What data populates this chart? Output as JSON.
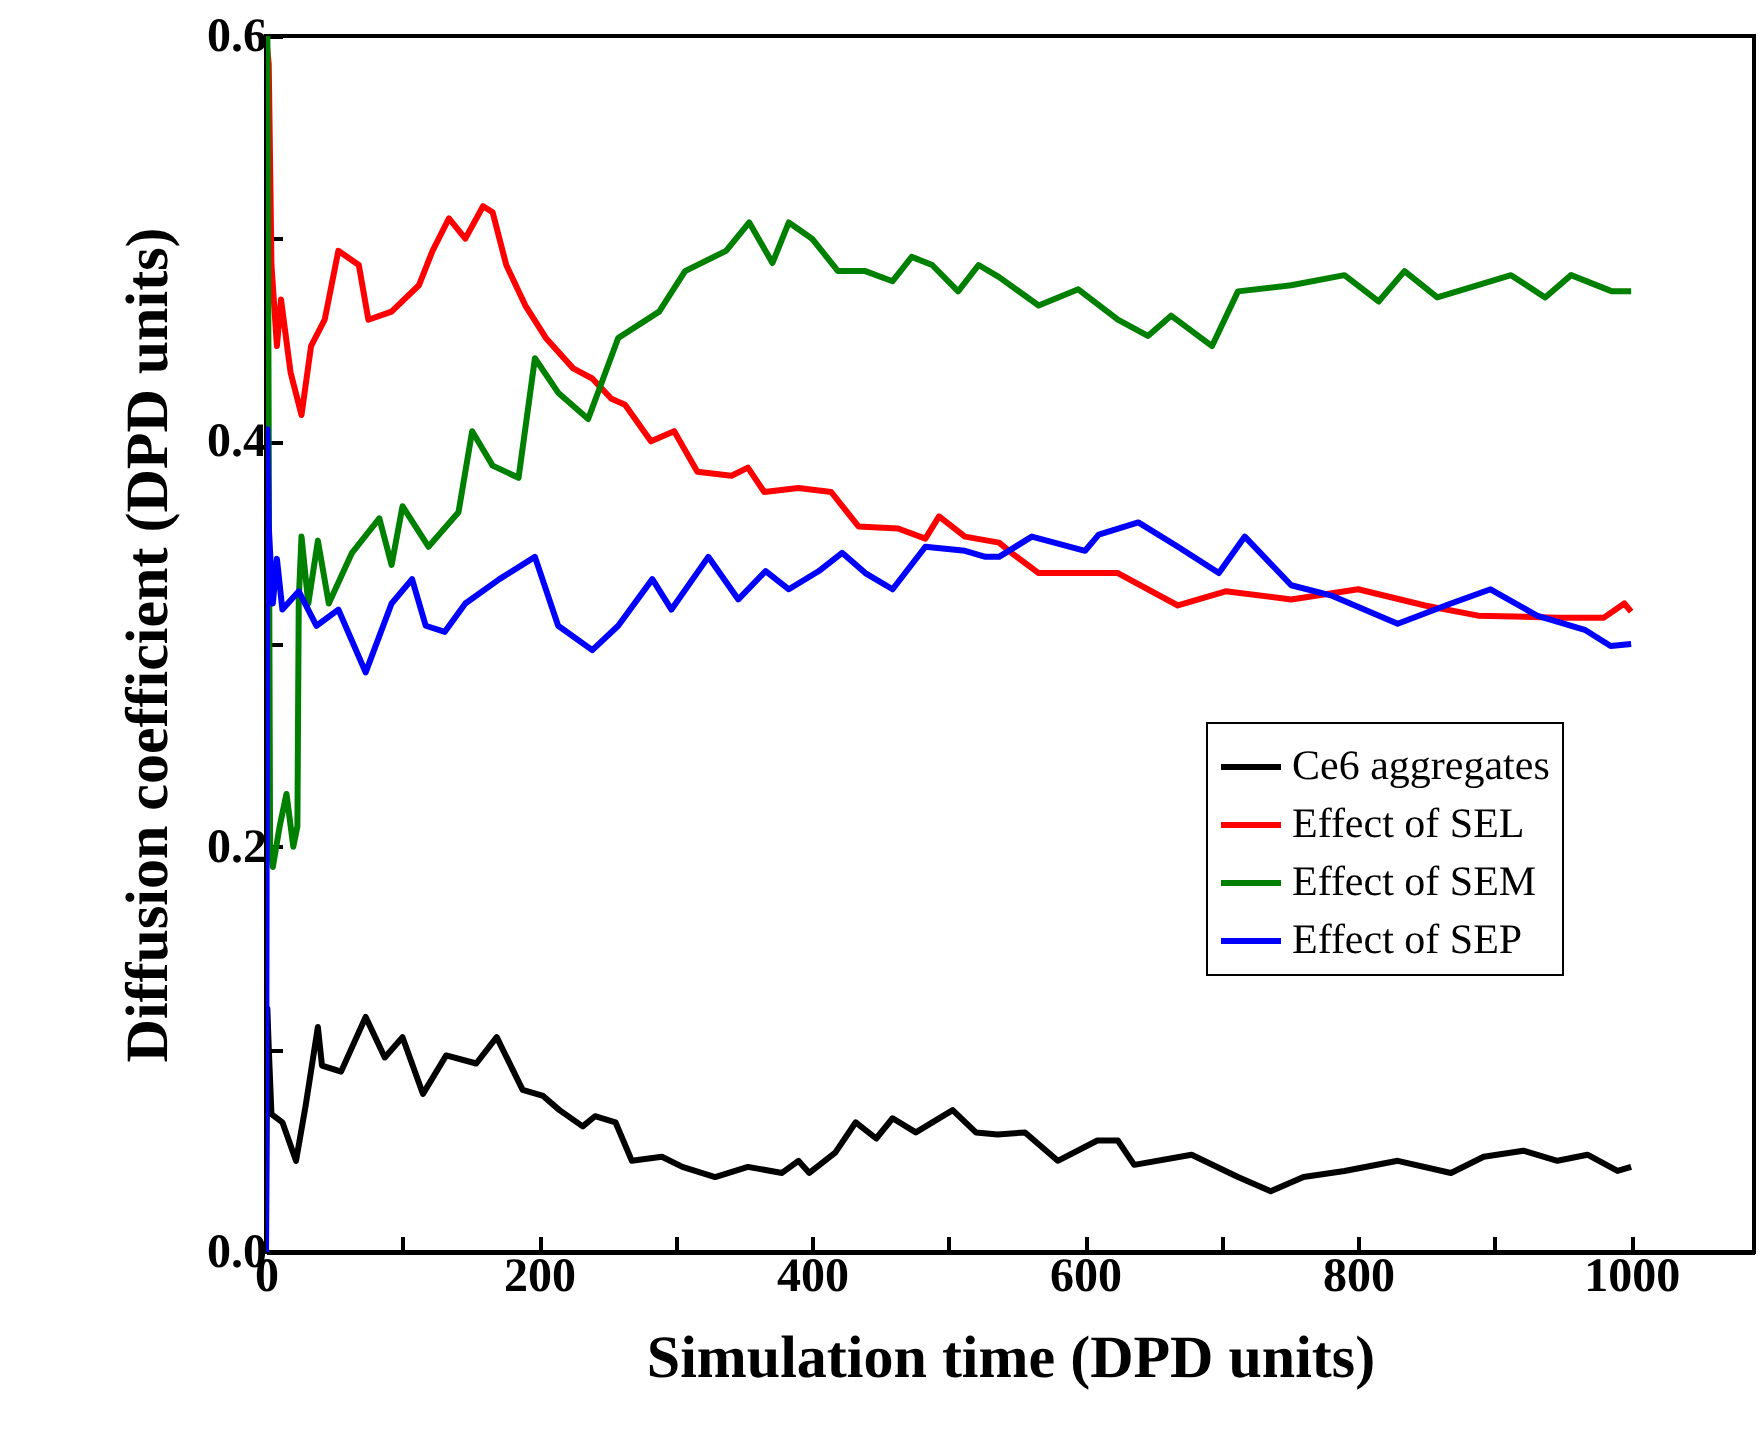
{
  "chart_data": {
    "type": "line",
    "xlabel": "Simulation time (DPD units)",
    "ylabel": "Diffusion coefficient (DPD units)",
    "xlim": [
      0,
      1090
    ],
    "xticks": [
      0,
      {
        "value": 100,
        "label": null
      },
      200,
      {
        "value": 300,
        "label": null
      },
      400,
      {
        "value": 500,
        "label": null
      },
      600,
      {
        "value": 700,
        "label": null
      },
      800,
      {
        "value": 900,
        "label": null
      },
      1000
    ],
    "ylim": [
      0,
      0.6
    ],
    "yticks": [
      {
        "value": 0,
        "label": "0.0"
      },
      {
        "value": 0.1,
        "label": null
      },
      0.2,
      {
        "value": 0.3,
        "label": null
      },
      0.4,
      {
        "value": 0.5,
        "label": null
      },
      0.6
    ],
    "grid": false,
    "legend": "right",
    "line_style": "solid",
    "marker": "none",
    "series": [
      {
        "name": "Ce6 aggregates",
        "color": "#000000",
        "x": [
          0,
          1,
          2,
          4,
          12,
          22,
          29,
          38,
          41,
          55,
          73,
          87,
          100,
          115,
          132,
          154,
          169,
          188,
          203,
          215,
          232,
          241,
          256,
          268,
          290,
          305,
          329,
          353,
          378,
          390,
          398,
          417,
          432,
          447,
          459,
          476,
          503,
          520,
          536,
          556,
          580,
          609,
          624,
          636,
          678,
          712,
          736,
          760,
          790,
          829,
          868,
          892,
          921,
          946,
          968,
          990,
          1000
        ],
        "values": [
          0,
          0.12,
          0.101,
          0.068,
          0.064,
          0.045,
          0.072,
          0.111,
          0.092,
          0.089,
          0.116,
          0.096,
          0.106,
          0.078,
          0.097,
          0.093,
          0.106,
          0.08,
          0.077,
          0.07,
          0.062,
          0.067,
          0.064,
          0.045,
          0.047,
          0.042,
          0.037,
          0.042,
          0.039,
          0.045,
          0.039,
          0.049,
          0.064,
          0.056,
          0.066,
          0.059,
          0.07,
          0.059,
          0.058,
          0.059,
          0.045,
          0.055,
          0.055,
          0.043,
          0.048,
          0.037,
          0.03,
          0.037,
          0.04,
          0.045,
          0.039,
          0.047,
          0.05,
          0.045,
          0.048,
          0.04,
          0.042
        ]
      },
      {
        "name": "Effect of SEL",
        "color": "#ff0000",
        "x": [
          0,
          2,
          4,
          8,
          11,
          18,
          26,
          33,
          43,
          53,
          68,
          75,
          92,
          112,
          122,
          134,
          146,
          159,
          166,
          176,
          190,
          205,
          225,
          239,
          253,
          263,
          282,
          299,
          316,
          341,
          353,
          365,
          390,
          414,
          434,
          463,
          483,
          493,
          512,
          537,
          546,
          566,
          605,
          624,
          668,
          703,
          751,
          800,
          849,
          888,
          946,
          980,
          995,
          1000
        ],
        "values": [
          0.6,
          0.586,
          0.487,
          0.447,
          0.47,
          0.434,
          0.413,
          0.447,
          0.46,
          0.494,
          0.487,
          0.46,
          0.464,
          0.477,
          0.494,
          0.51,
          0.5,
          0.516,
          0.513,
          0.487,
          0.467,
          0.451,
          0.436,
          0.431,
          0.421,
          0.418,
          0.4,
          0.405,
          0.385,
          0.383,
          0.387,
          0.375,
          0.377,
          0.375,
          0.358,
          0.357,
          0.352,
          0.363,
          0.353,
          0.35,
          0.345,
          0.335,
          0.335,
          0.335,
          0.319,
          0.326,
          0.322,
          0.327,
          0.319,
          0.314,
          0.313,
          0.313,
          0.32,
          0.316
        ]
      },
      {
        "name": "Effect of SEM",
        "color": "#008000",
        "x": [
          0,
          1,
          3,
          5,
          10,
          15,
          20,
          23,
          24,
          26,
          31,
          38,
          46,
          63,
          83,
          92,
          100,
          119,
          141,
          151,
          166,
          185,
          197,
          214,
          236,
          258,
          288,
          307,
          337,
          354,
          371,
          383,
          400,
          419,
          439,
          459,
          473,
          488,
          507,
          522,
          537,
          566,
          595,
          624,
          646,
          663,
          693,
          712,
          751,
          790,
          815,
          834,
          858,
          912,
          937,
          956,
          986,
          1000
        ],
        "values": [
          0.41,
          0.6,
          0.2,
          0.19,
          0.21,
          0.226,
          0.2,
          0.21,
          0.322,
          0.353,
          0.32,
          0.351,
          0.32,
          0.345,
          0.362,
          0.339,
          0.368,
          0.348,
          0.365,
          0.405,
          0.388,
          0.382,
          0.441,
          0.424,
          0.411,
          0.451,
          0.464,
          0.484,
          0.494,
          0.508,
          0.488,
          0.508,
          0.5,
          0.484,
          0.484,
          0.479,
          0.491,
          0.487,
          0.474,
          0.487,
          0.481,
          0.467,
          0.475,
          0.46,
          0.452,
          0.462,
          0.447,
          0.474,
          0.477,
          0.482,
          0.469,
          0.484,
          0.471,
          0.482,
          0.471,
          0.482,
          0.474,
          0.474
        ]
      },
      {
        "name": "Effect of SEP",
        "color": "#0000ff",
        "x": [
          0,
          1,
          2,
          5,
          8,
          12,
          24,
          37,
          53,
          73,
          92,
          107,
          117,
          131,
          146,
          171,
          197,
          214,
          239,
          258,
          283,
          297,
          324,
          346,
          366,
          383,
          405,
          422,
          439,
          459,
          483,
          512,
          527,
          537,
          561,
          600,
          610,
          639,
          668,
          698,
          717,
          751,
          780,
          829,
          868,
          897,
          931,
          966,
          985,
          1000
        ],
        "values": [
          0,
          0.406,
          0.358,
          0.32,
          0.342,
          0.317,
          0.326,
          0.309,
          0.317,
          0.286,
          0.32,
          0.332,
          0.309,
          0.306,
          0.32,
          0.332,
          0.343,
          0.309,
          0.297,
          0.309,
          0.332,
          0.317,
          0.343,
          0.322,
          0.336,
          0.327,
          0.336,
          0.345,
          0.335,
          0.327,
          0.348,
          0.346,
          0.343,
          0.343,
          0.353,
          0.346,
          0.354,
          0.36,
          0.348,
          0.335,
          0.353,
          0.329,
          0.324,
          0.31,
          0.32,
          0.327,
          0.314,
          0.307,
          0.299,
          0.3
        ]
      }
    ]
  }
}
